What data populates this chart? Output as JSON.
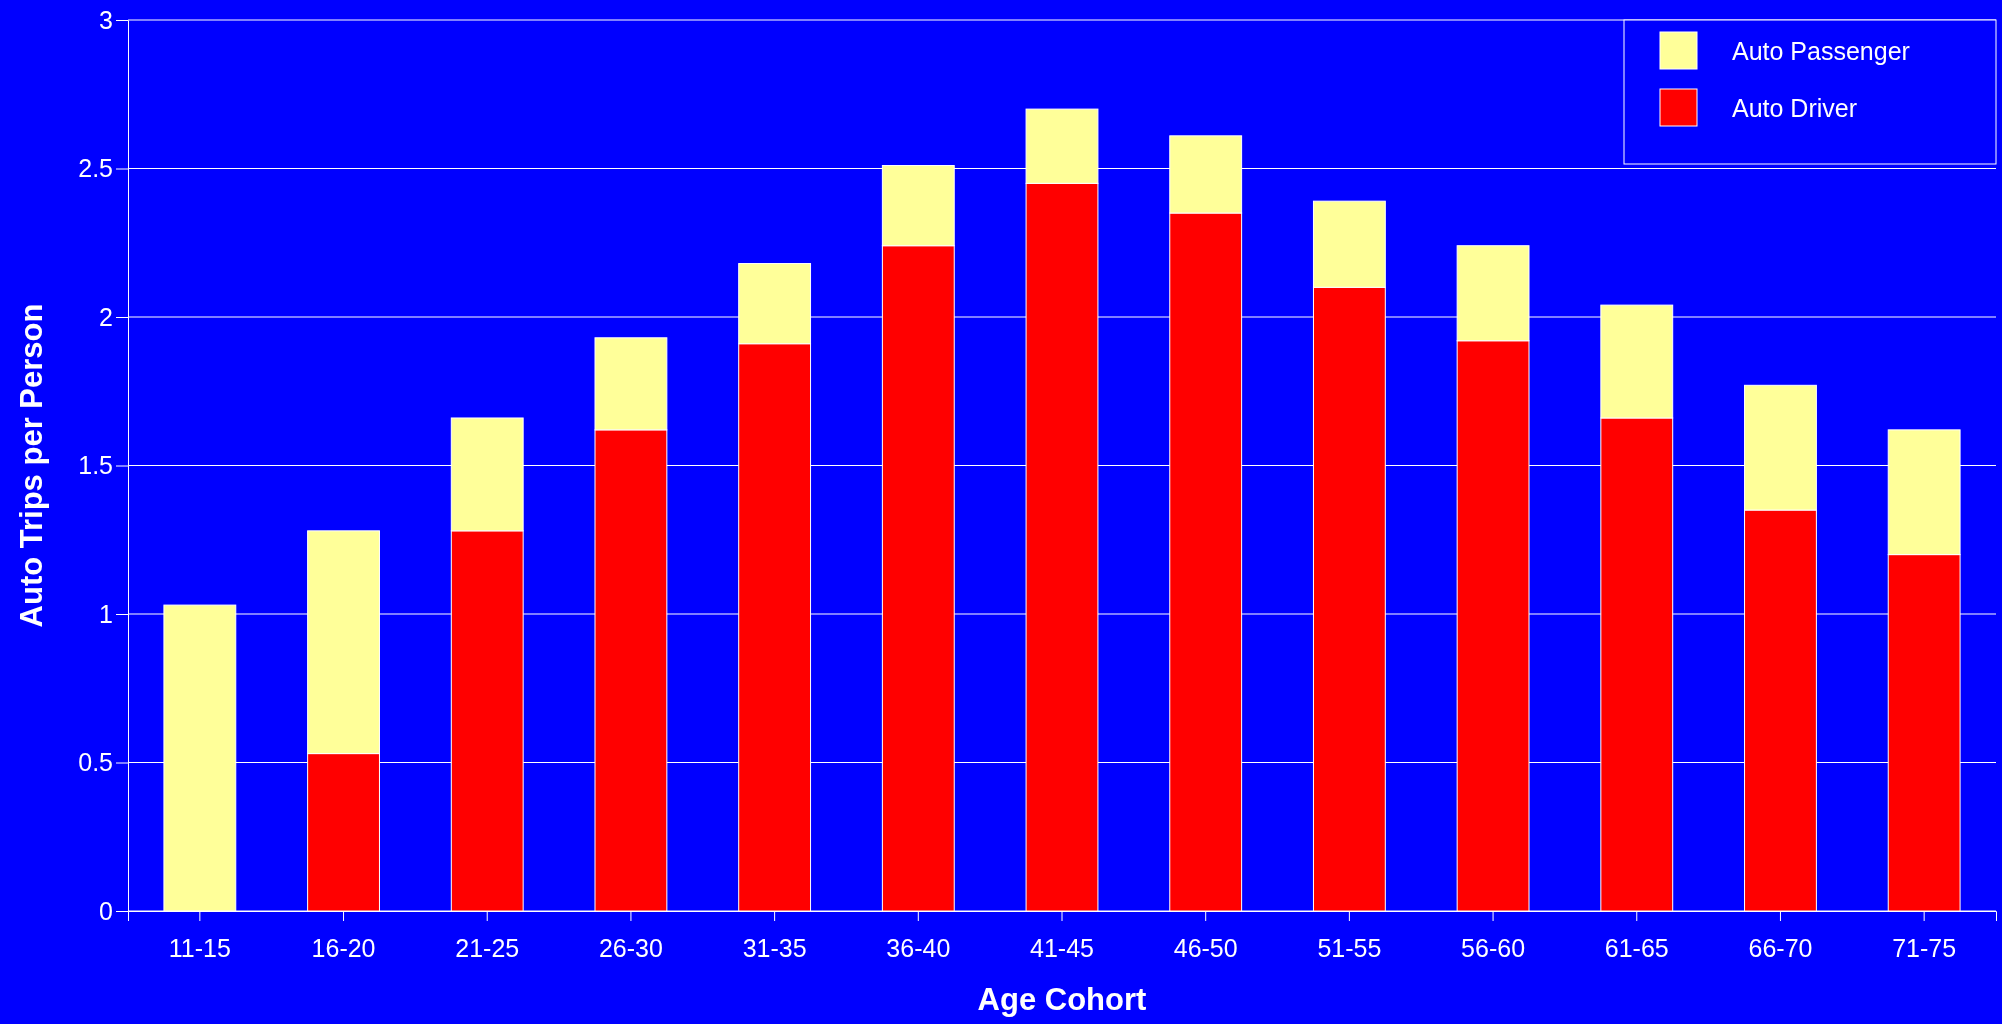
{
  "chart_data": {
    "type": "bar",
    "stacked": true,
    "xlabel": "Age Cohort",
    "ylabel": "Auto Trips per Person",
    "categories": [
      "11-15",
      "16-20",
      "21-25",
      "26-30",
      "31-35",
      "36-40",
      "41-45",
      "46-50",
      "51-55",
      "56-60",
      "61-65",
      "66-70",
      "71-75"
    ],
    "series": [
      {
        "name": "Auto Driver",
        "color": "#ff0000",
        "values": [
          0,
          0.53,
          1.28,
          1.62,
          1.91,
          2.24,
          2.45,
          2.35,
          2.1,
          1.92,
          1.66,
          1.35,
          1.2
        ]
      },
      {
        "name": "Auto Passenger",
        "color": "#ffff99",
        "values": [
          1.03,
          0.75,
          0.38,
          0.31,
          0.27,
          0.27,
          0.25,
          0.26,
          0.29,
          0.32,
          0.38,
          0.42,
          0.42
        ]
      }
    ],
    "ylim": [
      0,
      3
    ],
    "yticks": [
      0,
      {
        "value": 0.5,
        "label": "0.5"
      },
      1,
      {
        "value": 1.5,
        "label": "1.5"
      },
      2,
      {
        "value": 2.5,
        "label": "2.5"
      },
      3
    ],
    "grid": "y",
    "legend": "top right"
  }
}
